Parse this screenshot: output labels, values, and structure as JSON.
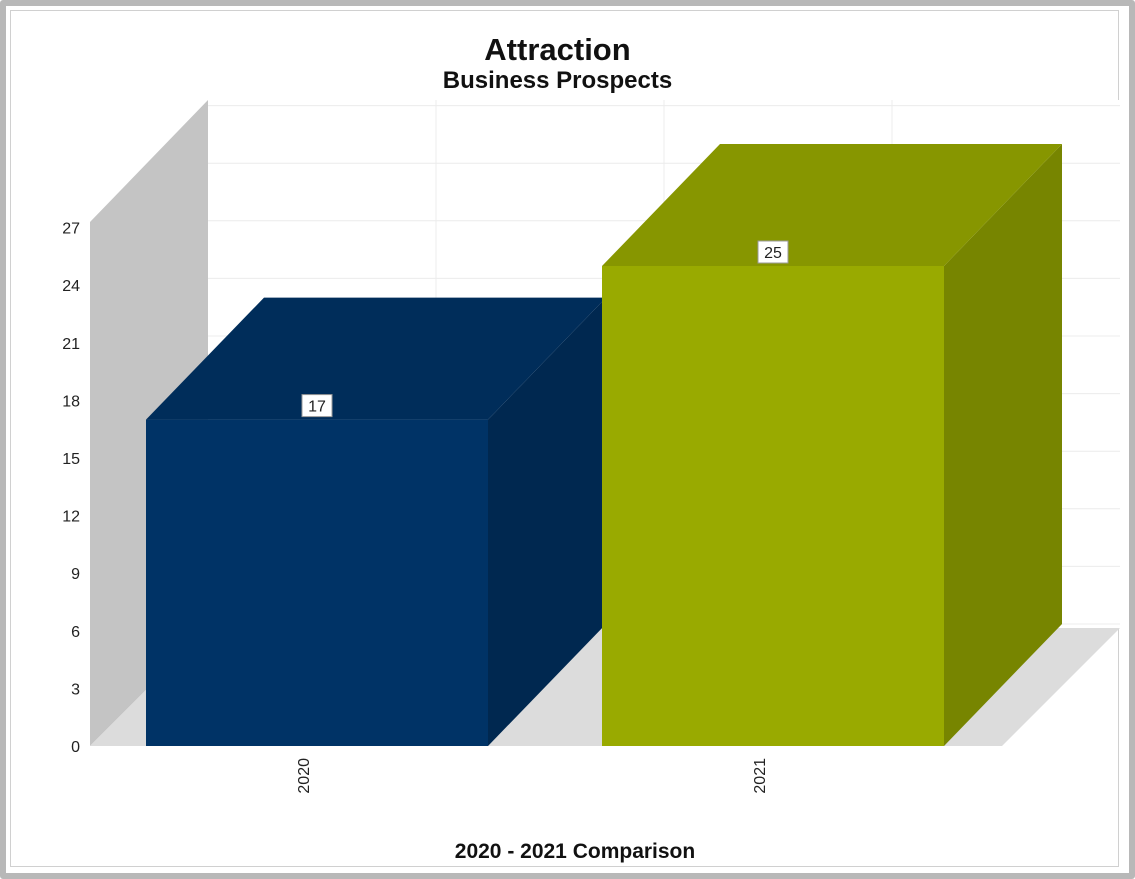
{
  "chart_data": {
    "type": "bar",
    "title": "Attraction",
    "subtitle": "Business Prospects",
    "xlabel": "2020 - 2021 Comparison",
    "ylabel": "",
    "categories": [
      "2020",
      "2021"
    ],
    "values": [
      17,
      25
    ],
    "data_labels": [
      "17",
      "25"
    ],
    "colors": [
      "#003366",
      "#99aa00"
    ],
    "ylim": [
      0,
      27
    ],
    "yticks": [
      "0",
      "3",
      "6",
      "9",
      "12",
      "15",
      "18",
      "21",
      "24",
      "27"
    ],
    "grid": true,
    "legend": "none",
    "style": "3d"
  }
}
